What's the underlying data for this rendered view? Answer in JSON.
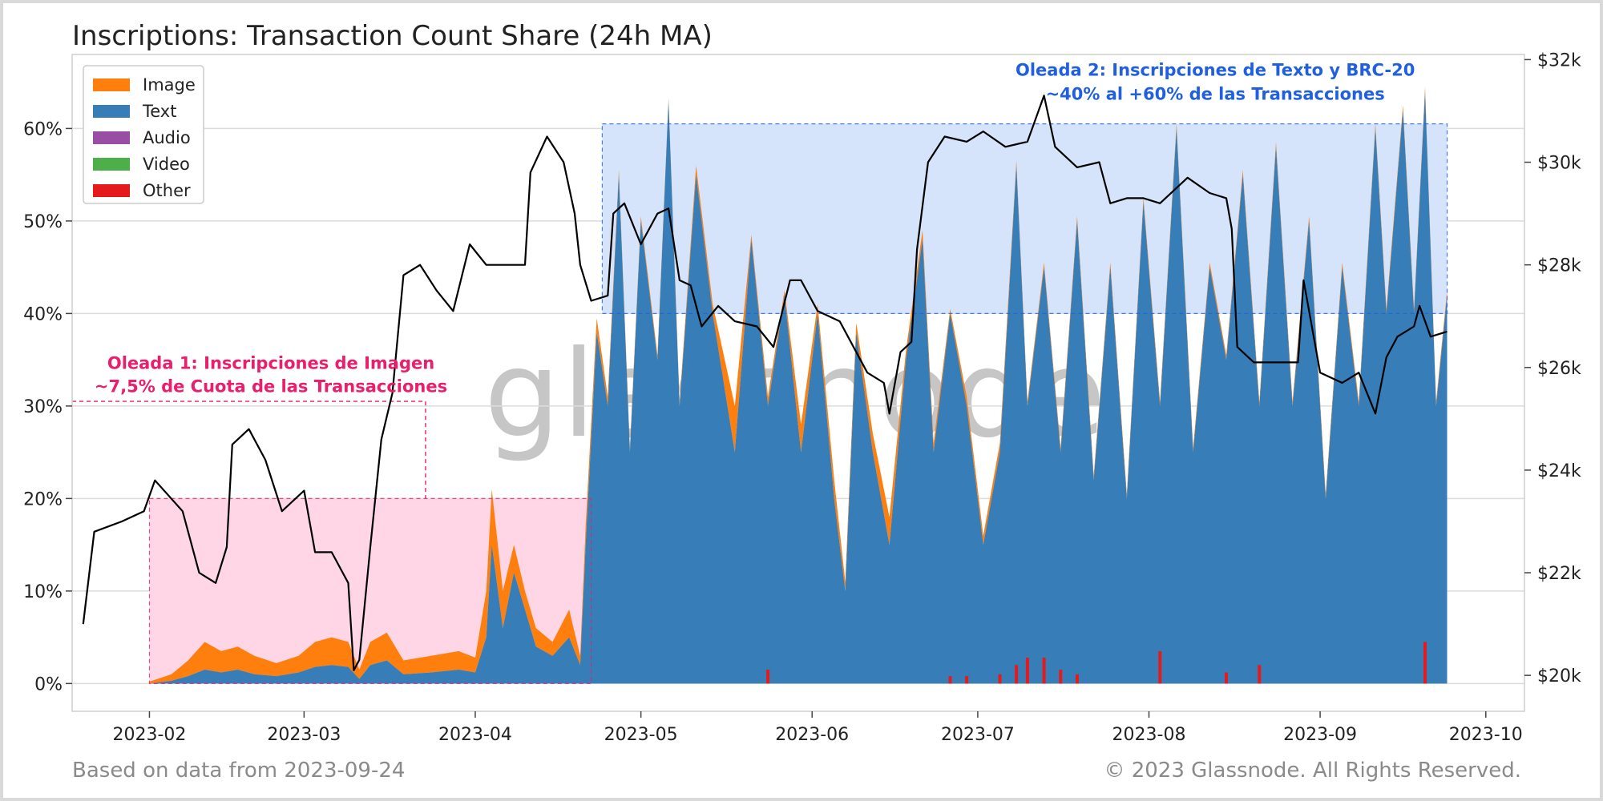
{
  "chart_data": {
    "type": "area",
    "title": "Inscriptions: Transaction Count Share (24h MA)",
    "x_ticks": [
      "2023-02",
      "2023-03",
      "2023-04",
      "2023-05",
      "2023-06",
      "2023-07",
      "2023-08",
      "2023-09",
      "2023-10"
    ],
    "x_range": [
      "2023-01-18",
      "2023-10-08"
    ],
    "y_left": {
      "ticks": [
        "0%",
        "10%",
        "20%",
        "30%",
        "40%",
        "50%",
        "60%"
      ],
      "range": [
        -0.03,
        0.68
      ],
      "unit": "share"
    },
    "y_right": {
      "ticks": [
        "$20k",
        "$22k",
        "$24k",
        "$26k",
        "$28k",
        "$30k",
        "$32k"
      ],
      "range": [
        19300,
        32100
      ],
      "unit": "USD"
    },
    "legend_position": "top-left",
    "grid": true,
    "series": [
      {
        "name": "Image",
        "color": "#ff7f0e"
      },
      {
        "name": "Text",
        "color": "#377eb8"
      },
      {
        "name": "Audio",
        "color": "#984ea3"
      },
      {
        "name": "Video",
        "color": "#4daf4a"
      },
      {
        "name": "Other",
        "color": "#e41a1c"
      }
    ],
    "share_points": [
      {
        "date": "2023-02-01",
        "text": 0.0,
        "image": 0.002,
        "other": 0
      },
      {
        "date": "2023-02-05",
        "text": 0.003,
        "image": 0.01,
        "other": 0
      },
      {
        "date": "2023-02-08",
        "text": 0.008,
        "image": 0.025,
        "other": 0
      },
      {
        "date": "2023-02-11",
        "text": 0.015,
        "image": 0.045,
        "other": 0
      },
      {
        "date": "2023-02-14",
        "text": 0.012,
        "image": 0.035,
        "other": 0
      },
      {
        "date": "2023-02-17",
        "text": 0.015,
        "image": 0.04,
        "other": 0
      },
      {
        "date": "2023-02-20",
        "text": 0.01,
        "image": 0.03,
        "other": 0
      },
      {
        "date": "2023-02-24",
        "text": 0.008,
        "image": 0.022,
        "other": 0
      },
      {
        "date": "2023-02-28",
        "text": 0.012,
        "image": 0.03,
        "other": 0
      },
      {
        "date": "2023-03-03",
        "text": 0.018,
        "image": 0.045,
        "other": 0
      },
      {
        "date": "2023-03-06",
        "text": 0.02,
        "image": 0.05,
        "other": 0
      },
      {
        "date": "2023-03-09",
        "text": 0.018,
        "image": 0.045,
        "other": 0
      },
      {
        "date": "2023-03-11",
        "text": 0.005,
        "image": 0.015,
        "other": 0
      },
      {
        "date": "2023-03-13",
        "text": 0.02,
        "image": 0.045,
        "other": 0
      },
      {
        "date": "2023-03-16",
        "text": 0.025,
        "image": 0.055,
        "other": 0
      },
      {
        "date": "2023-03-19",
        "text": 0.01,
        "image": 0.025,
        "other": 0
      },
      {
        "date": "2023-03-24",
        "text": 0.012,
        "image": 0.03,
        "other": 0
      },
      {
        "date": "2023-03-29",
        "text": 0.015,
        "image": 0.035,
        "other": 0
      },
      {
        "date": "2023-04-01",
        "text": 0.012,
        "image": 0.028,
        "other": 0
      },
      {
        "date": "2023-04-03",
        "text": 0.05,
        "image": 0.1,
        "other": 0
      },
      {
        "date": "2023-04-04",
        "text": 0.15,
        "image": 0.21,
        "other": 0
      },
      {
        "date": "2023-04-06",
        "text": 0.06,
        "image": 0.1,
        "other": 0
      },
      {
        "date": "2023-04-08",
        "text": 0.12,
        "image": 0.15,
        "other": 0
      },
      {
        "date": "2023-04-10",
        "text": 0.08,
        "image": 0.1,
        "other": 0
      },
      {
        "date": "2023-04-12",
        "text": 0.04,
        "image": 0.06,
        "other": 0
      },
      {
        "date": "2023-04-15",
        "text": 0.03,
        "image": 0.045,
        "other": 0
      },
      {
        "date": "2023-04-18",
        "text": 0.05,
        "image": 0.08,
        "other": 0
      },
      {
        "date": "2023-04-20",
        "text": 0.02,
        "image": 0.03,
        "other": 0
      },
      {
        "date": "2023-04-21",
        "text": 0.15,
        "image": 0.17,
        "other": 0
      },
      {
        "date": "2023-04-23",
        "text": 0.38,
        "image": 0.395,
        "other": 0
      },
      {
        "date": "2023-04-25",
        "text": 0.3,
        "image": 0.31,
        "other": 0
      },
      {
        "date": "2023-04-27",
        "text": 0.55,
        "image": 0.555,
        "other": 0
      },
      {
        "date": "2023-04-29",
        "text": 0.25,
        "image": 0.255,
        "other": 0
      },
      {
        "date": "2023-05-01",
        "text": 0.5,
        "image": 0.505,
        "other": 0
      },
      {
        "date": "2023-05-04",
        "text": 0.35,
        "image": 0.355,
        "other": 0.002
      },
      {
        "date": "2023-05-06",
        "text": 0.63,
        "image": 0.633,
        "other": 0.002
      },
      {
        "date": "2023-05-08",
        "text": 0.3,
        "image": 0.305,
        "other": 0.001
      },
      {
        "date": "2023-05-11",
        "text": 0.55,
        "image": 0.56,
        "other": 0.002
      },
      {
        "date": "2023-05-14",
        "text": 0.4,
        "image": 0.41,
        "other": 0.001
      },
      {
        "date": "2023-05-18",
        "text": 0.25,
        "image": 0.3,
        "other": 0.001
      },
      {
        "date": "2023-05-21",
        "text": 0.48,
        "image": 0.485,
        "other": 0.001
      },
      {
        "date": "2023-05-24",
        "text": 0.3,
        "image": 0.31,
        "other": 0.015
      },
      {
        "date": "2023-05-27",
        "text": 0.42,
        "image": 0.425,
        "other": 0.002
      },
      {
        "date": "2023-05-30",
        "text": 0.25,
        "image": 0.28,
        "other": 0.001
      },
      {
        "date": "2023-06-02",
        "text": 0.4,
        "image": 0.41,
        "other": 0.001
      },
      {
        "date": "2023-06-05",
        "text": 0.2,
        "image": 0.22,
        "other": 0.001
      },
      {
        "date": "2023-06-07",
        "text": 0.1,
        "image": 0.11,
        "other": 0.001
      },
      {
        "date": "2023-06-09",
        "text": 0.38,
        "image": 0.39,
        "other": 0.001
      },
      {
        "date": "2023-06-12",
        "text": 0.25,
        "image": 0.27,
        "other": 0.002
      },
      {
        "date": "2023-06-15",
        "text": 0.15,
        "image": 0.18,
        "other": 0.001
      },
      {
        "date": "2023-06-18",
        "text": 0.35,
        "image": 0.36,
        "other": 0.002
      },
      {
        "date": "2023-06-21",
        "text": 0.48,
        "image": 0.49,
        "other": 0.001
      },
      {
        "date": "2023-06-23",
        "text": 0.25,
        "image": 0.26,
        "other": 0.001
      },
      {
        "date": "2023-06-26",
        "text": 0.4,
        "image": 0.405,
        "other": 0.008
      },
      {
        "date": "2023-06-29",
        "text": 0.3,
        "image": 0.31,
        "other": 0.008
      },
      {
        "date": "2023-07-02",
        "text": 0.15,
        "image": 0.16,
        "other": 0.002
      },
      {
        "date": "2023-07-05",
        "text": 0.25,
        "image": 0.26,
        "other": 0.01
      },
      {
        "date": "2023-07-08",
        "text": 0.56,
        "image": 0.565,
        "other": 0.02
      },
      {
        "date": "2023-07-10",
        "text": 0.3,
        "image": 0.305,
        "other": 0.028
      },
      {
        "date": "2023-07-13",
        "text": 0.45,
        "image": 0.455,
        "other": 0.028
      },
      {
        "date": "2023-07-16",
        "text": 0.25,
        "image": 0.255,
        "other": 0.015
      },
      {
        "date": "2023-07-19",
        "text": 0.5,
        "image": 0.505,
        "other": 0.01
      },
      {
        "date": "2023-07-22",
        "text": 0.22,
        "image": 0.225,
        "other": 0.002
      },
      {
        "date": "2023-07-25",
        "text": 0.45,
        "image": 0.455,
        "other": 0.002
      },
      {
        "date": "2023-07-28",
        "text": 0.2,
        "image": 0.205,
        "other": 0.001
      },
      {
        "date": "2023-07-31",
        "text": 0.52,
        "image": 0.525,
        "other": 0.002
      },
      {
        "date": "2023-08-03",
        "text": 0.3,
        "image": 0.305,
        "other": 0.035
      },
      {
        "date": "2023-08-06",
        "text": 0.6,
        "image": 0.605,
        "other": 0.002
      },
      {
        "date": "2023-08-09",
        "text": 0.25,
        "image": 0.255,
        "other": 0.001
      },
      {
        "date": "2023-08-12",
        "text": 0.45,
        "image": 0.455,
        "other": 0.002
      },
      {
        "date": "2023-08-15",
        "text": 0.35,
        "image": 0.355,
        "other": 0.012
      },
      {
        "date": "2023-08-18",
        "text": 0.55,
        "image": 0.555,
        "other": 0.002
      },
      {
        "date": "2023-08-21",
        "text": 0.3,
        "image": 0.305,
        "other": 0.02
      },
      {
        "date": "2023-08-24",
        "text": 0.58,
        "image": 0.585,
        "other": 0.002
      },
      {
        "date": "2023-08-27",
        "text": 0.3,
        "image": 0.305,
        "other": 0.001
      },
      {
        "date": "2023-08-30",
        "text": 0.5,
        "image": 0.505,
        "other": 0.002
      },
      {
        "date": "2023-09-02",
        "text": 0.2,
        "image": 0.205,
        "other": 0.001
      },
      {
        "date": "2023-09-05",
        "text": 0.45,
        "image": 0.455,
        "other": 0.001
      },
      {
        "date": "2023-09-08",
        "text": 0.3,
        "image": 0.305,
        "other": 0.001
      },
      {
        "date": "2023-09-11",
        "text": 0.6,
        "image": 0.605,
        "other": 0.002
      },
      {
        "date": "2023-09-13",
        "text": 0.4,
        "image": 0.405,
        "other": 0.001
      },
      {
        "date": "2023-09-16",
        "text": 0.62,
        "image": 0.625,
        "other": 0.002
      },
      {
        "date": "2023-09-18",
        "text": 0.4,
        "image": 0.405,
        "other": 0.002
      },
      {
        "date": "2023-09-20",
        "text": 0.64,
        "image": 0.645,
        "other": 0.045
      },
      {
        "date": "2023-09-22",
        "text": 0.3,
        "image": 0.305,
        "other": 0.002
      },
      {
        "date": "2023-09-24",
        "text": 0.42,
        "image": 0.425,
        "other": 0.001
      }
    ],
    "price_points": [
      {
        "date": "2023-01-20",
        "usd": 21000
      },
      {
        "date": "2023-01-22",
        "usd": 22800
      },
      {
        "date": "2023-01-27",
        "usd": 23000
      },
      {
        "date": "2023-01-31",
        "usd": 23200
      },
      {
        "date": "2023-02-02",
        "usd": 23800
      },
      {
        "date": "2023-02-07",
        "usd": 23200
      },
      {
        "date": "2023-02-10",
        "usd": 22000
      },
      {
        "date": "2023-02-13",
        "usd": 21800
      },
      {
        "date": "2023-02-15",
        "usd": 22500
      },
      {
        "date": "2023-02-16",
        "usd": 24500
      },
      {
        "date": "2023-02-19",
        "usd": 24800
      },
      {
        "date": "2023-02-22",
        "usd": 24200
      },
      {
        "date": "2023-02-25",
        "usd": 23200
      },
      {
        "date": "2023-03-01",
        "usd": 23600
      },
      {
        "date": "2023-03-03",
        "usd": 22400
      },
      {
        "date": "2023-03-06",
        "usd": 22400
      },
      {
        "date": "2023-03-09",
        "usd": 21800
      },
      {
        "date": "2023-03-10",
        "usd": 20100
      },
      {
        "date": "2023-03-11",
        "usd": 20300
      },
      {
        "date": "2023-03-13",
        "usd": 22500
      },
      {
        "date": "2023-03-15",
        "usd": 24600
      },
      {
        "date": "2023-03-17",
        "usd": 25500
      },
      {
        "date": "2023-03-19",
        "usd": 27800
      },
      {
        "date": "2023-03-22",
        "usd": 28000
      },
      {
        "date": "2023-03-25",
        "usd": 27500
      },
      {
        "date": "2023-03-28",
        "usd": 27100
      },
      {
        "date": "2023-03-31",
        "usd": 28400
      },
      {
        "date": "2023-04-03",
        "usd": 28000
      },
      {
        "date": "2023-04-07",
        "usd": 28000
      },
      {
        "date": "2023-04-10",
        "usd": 28000
      },
      {
        "date": "2023-04-11",
        "usd": 29800
      },
      {
        "date": "2023-04-14",
        "usd": 30500
      },
      {
        "date": "2023-04-17",
        "usd": 30000
      },
      {
        "date": "2023-04-19",
        "usd": 29000
      },
      {
        "date": "2023-04-20",
        "usd": 28000
      },
      {
        "date": "2023-04-22",
        "usd": 27300
      },
      {
        "date": "2023-04-25",
        "usd": 27400
      },
      {
        "date": "2023-04-26",
        "usd": 29000
      },
      {
        "date": "2023-04-28",
        "usd": 29200
      },
      {
        "date": "2023-05-01",
        "usd": 28400
      },
      {
        "date": "2023-05-04",
        "usd": 29000
      },
      {
        "date": "2023-05-06",
        "usd": 29100
      },
      {
        "date": "2023-05-08",
        "usd": 27700
      },
      {
        "date": "2023-05-10",
        "usd": 27600
      },
      {
        "date": "2023-05-12",
        "usd": 26800
      },
      {
        "date": "2023-05-15",
        "usd": 27200
      },
      {
        "date": "2023-05-18",
        "usd": 26900
      },
      {
        "date": "2023-05-22",
        "usd": 26800
      },
      {
        "date": "2023-05-25",
        "usd": 26400
      },
      {
        "date": "2023-05-28",
        "usd": 27700
      },
      {
        "date": "2023-05-30",
        "usd": 27700
      },
      {
        "date": "2023-06-02",
        "usd": 27100
      },
      {
        "date": "2023-06-06",
        "usd": 26900
      },
      {
        "date": "2023-06-08",
        "usd": 26500
      },
      {
        "date": "2023-06-11",
        "usd": 25900
      },
      {
        "date": "2023-06-14",
        "usd": 25700
      },
      {
        "date": "2023-06-15",
        "usd": 25100
      },
      {
        "date": "2023-06-17",
        "usd": 26300
      },
      {
        "date": "2023-06-19",
        "usd": 26500
      },
      {
        "date": "2023-06-20",
        "usd": 28300
      },
      {
        "date": "2023-06-22",
        "usd": 30000
      },
      {
        "date": "2023-06-25",
        "usd": 30500
      },
      {
        "date": "2023-06-29",
        "usd": 30400
      },
      {
        "date": "2023-07-02",
        "usd": 30600
      },
      {
        "date": "2023-07-06",
        "usd": 30300
      },
      {
        "date": "2023-07-10",
        "usd": 30400
      },
      {
        "date": "2023-07-13",
        "usd": 31300
      },
      {
        "date": "2023-07-15",
        "usd": 30300
      },
      {
        "date": "2023-07-19",
        "usd": 29900
      },
      {
        "date": "2023-07-23",
        "usd": 30000
      },
      {
        "date": "2023-07-25",
        "usd": 29200
      },
      {
        "date": "2023-07-28",
        "usd": 29300
      },
      {
        "date": "2023-07-31",
        "usd": 29300
      },
      {
        "date": "2023-08-03",
        "usd": 29200
      },
      {
        "date": "2023-08-08",
        "usd": 29700
      },
      {
        "date": "2023-08-12",
        "usd": 29400
      },
      {
        "date": "2023-08-15",
        "usd": 29300
      },
      {
        "date": "2023-08-16",
        "usd": 28700
      },
      {
        "date": "2023-08-17",
        "usd": 26400
      },
      {
        "date": "2023-08-20",
        "usd": 26100
      },
      {
        "date": "2023-08-24",
        "usd": 26100
      },
      {
        "date": "2023-08-28",
        "usd": 26100
      },
      {
        "date": "2023-08-29",
        "usd": 27700
      },
      {
        "date": "2023-09-01",
        "usd": 25900
      },
      {
        "date": "2023-09-05",
        "usd": 25700
      },
      {
        "date": "2023-09-08",
        "usd": 25900
      },
      {
        "date": "2023-09-11",
        "usd": 25100
      },
      {
        "date": "2023-09-13",
        "usd": 26200
      },
      {
        "date": "2023-09-15",
        "usd": 26600
      },
      {
        "date": "2023-09-18",
        "usd": 26800
      },
      {
        "date": "2023-09-19",
        "usd": 27200
      },
      {
        "date": "2023-09-21",
        "usd": 26600
      },
      {
        "date": "2023-09-24",
        "usd": 26700
      }
    ],
    "annotations": [
      {
        "lines": [
          "Oleada 1: Inscripciones de Imagen",
          "~7,5% de Cuota de las Transacciones"
        ],
        "color": "#ea1e6c",
        "x_from": "2023-02-01",
        "x_to": "2023-04-22",
        "y_from": 0.0,
        "y_to": 0.2
      },
      {
        "lines": [
          "Oleada 2: Inscripciones de Texto y BRC-20",
          "~40% al +60% de las Transacciones"
        ],
        "color": "#1f5fe0",
        "x_from": "2023-04-24",
        "x_to": "2023-09-24",
        "y_from": 0.4,
        "y_to": 0.605
      }
    ]
  },
  "footer": {
    "source": "Based on data from 2023-09-24",
    "copyright": "© 2023 Glassnode. All Rights Reserved."
  },
  "watermark": "glassnode"
}
